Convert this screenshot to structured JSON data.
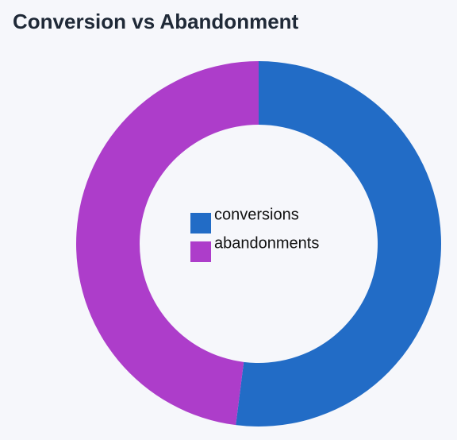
{
  "chart_data": {
    "type": "donut",
    "title": "Conversion vs Abandonment",
    "categories": [
      "conversions",
      "abandonments"
    ],
    "values": [
      52,
      48
    ],
    "colors": [
      "#226cc6",
      "#ad3dca"
    ],
    "legend": "center"
  }
}
